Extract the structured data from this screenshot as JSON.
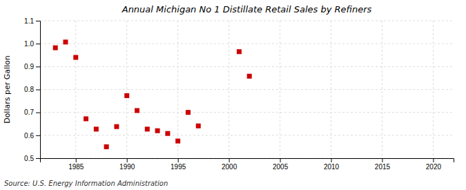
{
  "chart_data": {
    "type": "scatter",
    "title": "Annual Michigan No 1 Distillate Retail Sales by Refiners",
    "ylabel": "Dollars per Gallon",
    "annotations": [
      "Source: U.S. Energy Information Administration"
    ],
    "x": [
      1983,
      1984,
      1985,
      1986,
      1987,
      1988,
      1989,
      1990,
      1991,
      1992,
      1993,
      1994,
      1995,
      1996,
      1997,
      2001,
      2002
    ],
    "values": [
      0.982,
      1.007,
      0.94,
      0.672,
      0.627,
      0.55,
      0.638,
      0.773,
      0.708,
      0.627,
      0.62,
      0.608,
      0.575,
      0.7,
      0.641,
      0.965,
      0.858
    ],
    "color": "#cc0000",
    "marker": "square",
    "xlim": [
      1981.5,
      2022
    ],
    "ylim": [
      0.5,
      1.1
    ],
    "xticks": [
      1985,
      1990,
      1995,
      2000,
      2005,
      2010,
      2015,
      2020
    ],
    "yticks": [
      0.5,
      0.6,
      0.7,
      0.8,
      0.9,
      {
        "value": 1.0,
        "label": "1.0"
      },
      1.1
    ],
    "grid": true
  }
}
